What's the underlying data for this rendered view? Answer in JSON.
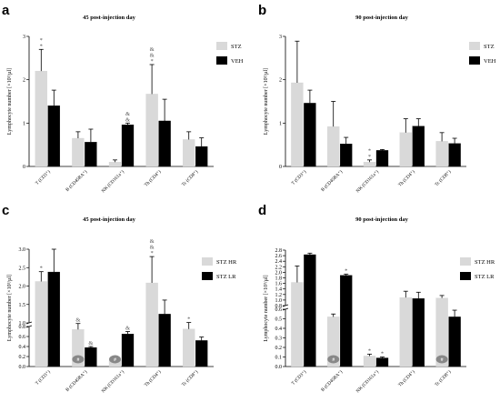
{
  "colors": {
    "first": "#d9d9d9",
    "second": "#000000",
    "hash_badge": "#888888"
  },
  "chart_data": [
    {
      "panel": "a",
      "type": "bar",
      "title": "45 post-injection day",
      "ylabel": "Lymphocyte number [×10³/µl]",
      "ylim": [
        0,
        3
      ],
      "yticks": [
        "0",
        "1",
        "2",
        "3"
      ],
      "categories": [
        "T (CD3⁺)",
        "B (CD45RA⁺)",
        "NK (CD161a⁺)",
        "Th (CD4⁺)",
        "Tc (CD8⁺)"
      ],
      "series": [
        {
          "name": "STZ",
          "color": "#d9d9d9",
          "values": [
            2.2,
            0.65,
            0.1,
            1.67,
            0.62
          ],
          "errors": [
            0.5,
            0.15,
            0.05,
            0.68,
            0.18
          ],
          "marks": [
            "**",
            "",
            "",
            "&&*",
            ""
          ]
        },
        {
          "name": "VEH",
          "color": "#000000",
          "values": [
            1.4,
            0.56,
            0.96,
            1.05,
            0.46
          ],
          "errors": [
            0.36,
            0.3,
            0.04,
            0.5,
            0.2
          ],
          "marks": [
            "",
            "",
            "&&",
            "",
            ""
          ]
        }
      ],
      "legend": "top-right"
    },
    {
      "panel": "b",
      "type": "bar",
      "title": "90 post-injection day",
      "ylabel": "Lymphocyte number [×10³/µl]",
      "ylim": [
        0,
        3
      ],
      "yticks": [
        "0",
        "1",
        "2",
        "3"
      ],
      "categories": [
        "T (CD3⁺)",
        "B (CD45RA⁺)",
        "NK (CD161a⁺)",
        "Th (CD4⁺)",
        "Tc (CD8⁺)"
      ],
      "series": [
        {
          "name": "STZ",
          "color": "#d9d9d9",
          "values": [
            1.93,
            0.92,
            0.1,
            0.78,
            0.58
          ],
          "errors": [
            0.96,
            0.58,
            0.05,
            0.32,
            0.2
          ],
          "marks": [
            "",
            "",
            "**",
            "",
            ""
          ]
        },
        {
          "name": "VEH",
          "color": "#000000",
          "values": [
            1.46,
            0.52,
            0.37,
            0.93,
            0.53
          ],
          "errors": [
            0.3,
            0.15,
            0.02,
            0.17,
            0.12
          ],
          "marks": [
            "",
            "",
            "",
            "",
            ""
          ]
        }
      ],
      "legend": "top-right"
    },
    {
      "panel": "c",
      "type": "bar",
      "title": "45 post-injection day",
      "ylabel": "Lymphocyte number [×10³/µl]",
      "broken_axis": true,
      "upper_ylim": [
        0.9,
        3.0
      ],
      "upper_yticks": [
        "1.0",
        "1.5",
        "2.0",
        "2.5",
        "3.0"
      ],
      "lower_ylim": [
        0.0,
        0.8
      ],
      "lower_yticks": [
        "0.0",
        "0.2",
        "0.4",
        "0.6",
        "0.8"
      ],
      "categories": [
        "T (CD3⁺)",
        "B (CD45RA⁺)",
        "NK (CD161a⁺)",
        "Th (CD4⁺)",
        "Tc (CD8⁺)"
      ],
      "series": [
        {
          "name": "STZ HR",
          "color": "#d9d9d9",
          "values": [
            2.08,
            0.74,
            0.12,
            2.04,
            0.75
          ],
          "errors": [
            0.28,
            0.12,
            0.05,
            0.75,
            0.13
          ],
          "marks": [
            "*",
            "&",
            "",
            "&&*",
            "*"
          ],
          "hash_badge": [
            false,
            true,
            true,
            false,
            false
          ]
        },
        {
          "name": "STZ LR",
          "color": "#000000",
          "values": [
            2.35,
            0.38,
            0.65,
            1.15,
            0.52
          ],
          "errors": [
            0.65,
            0.02,
            0.05,
            0.4,
            0.07
          ],
          "marks": [
            "",
            "&",
            "&",
            "",
            ""
          ],
          "hash_badge": [
            false,
            false,
            false,
            false,
            false
          ]
        }
      ],
      "legend": "top-right"
    },
    {
      "panel": "d",
      "type": "bar",
      "title": "90 post-injection day",
      "ylabel": "Lymphocyte number [×10³/µl]",
      "broken_axis": true,
      "upper_ylim": [
        0.6,
        2.8
      ],
      "upper_yticks": [
        "0.8",
        "1.0",
        "1.2",
        "1.4",
        "1.6",
        "1.8",
        "2.0",
        "2.2",
        "2.4",
        "2.6",
        "2.8"
      ],
      "lower_ylim": [
        0.0,
        0.6
      ],
      "lower_yticks": [
        "0.0",
        "0.1",
        "0.2",
        "0.3",
        "0.4",
        "0.5",
        "0.6"
      ],
      "categories": [
        "T (CD3⁺)",
        "B (CD45RA⁺)",
        "NK (CD161a⁺)",
        "Th (CD4⁺)",
        "Tc (CD8⁺)"
      ],
      "series": [
        {
          "name": "STZ HR",
          "color": "#d9d9d9",
          "values": [
            1.52,
            0.52,
            0.11,
            0.92,
            0.9
          ],
          "errors": [
            0.65,
            0.03,
            0.02,
            0.25,
            0.1
          ],
          "marks": [
            "",
            "",
            "*",
            "",
            ""
          ],
          "hash_badge": [
            false,
            true,
            false,
            false,
            true
          ]
        },
        {
          "name": "STZ LR",
          "color": "#000000",
          "values": [
            2.62,
            1.8,
            0.09,
            0.88,
            0.52
          ],
          "errors": [
            0.06,
            0.05,
            0.01,
            0.25,
            0.07
          ],
          "marks": [
            "",
            "*",
            "*",
            "",
            ""
          ],
          "hash_badge": [
            false,
            false,
            false,
            false,
            false
          ]
        }
      ],
      "legend": "top-right"
    }
  ]
}
